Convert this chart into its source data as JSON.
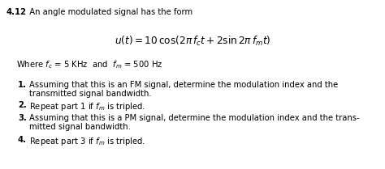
{
  "background_color": "#ffffff",
  "figsize": [
    4.74,
    2.09
  ],
  "dpi": 100,
  "fontsize": 7.2,
  "title_num": "4.12",
  "title_rest": "  An angle modulated signal has the form",
  "equation": "$u(t) = 10\\,\\cos(2\\pi\\, f_c t + 2 \\sin 2\\pi\\, f_m t)$",
  "where_line": "Where $f_c$ = 5 KHz  and  $f_m$ = 500 Hz",
  "items": [
    {
      "num": "1.",
      "line1": "Assuming that this is an FM signal, determine the modulation index and the",
      "line2": "transmitted signal bandwidth."
    },
    {
      "num": "2.",
      "line1": "Repeat part 1 if $f_m$ is tripled.",
      "line2": null
    },
    {
      "num": "3.",
      "line1": "Assuming that this is a PM signal, determine the modulation index and the trans-",
      "line2": "mitted signal bandwidth."
    },
    {
      "num": "4.",
      "line1": "Repeat part 3 if $f_m$ is tripled.",
      "line2": null
    }
  ]
}
